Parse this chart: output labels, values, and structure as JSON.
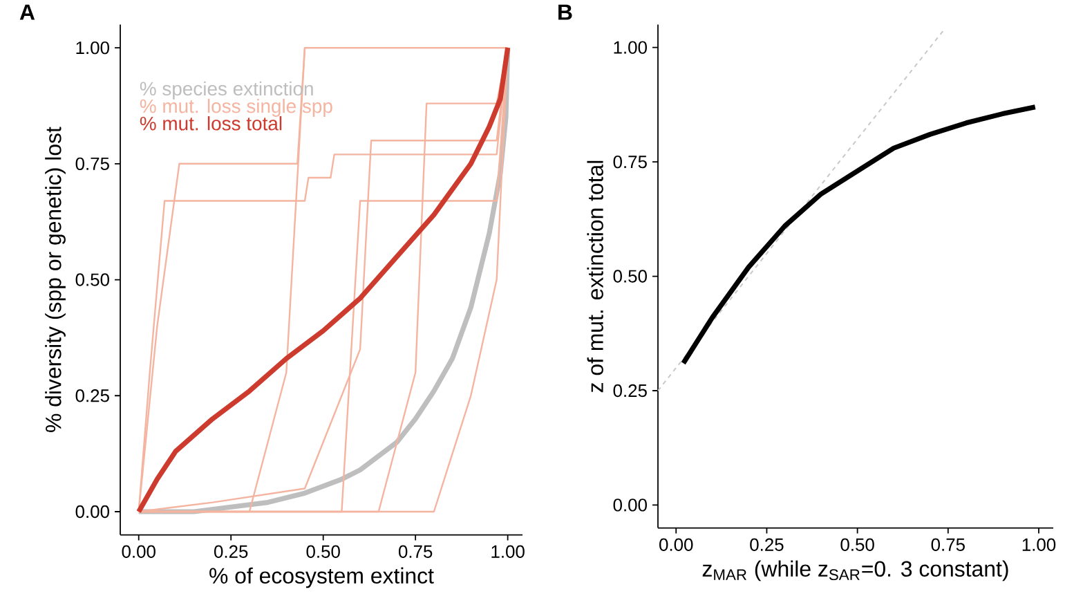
{
  "chart_data": [
    {
      "type": "line",
      "title": "A",
      "xlabel": "% of ecosystem extinct",
      "ylabel": "% diversity (spp or genetic) lost",
      "legend": "top left",
      "xlim": [
        -0.05,
        1.04
      ],
      "ylim": [
        -0.05,
        1.05
      ],
      "xticks": [
        {
          "value": 0,
          "label": "0.00"
        },
        {
          "value": 0.25,
          "label": "0.25"
        },
        {
          "value": 0.5,
          "label": "0.50"
        },
        {
          "value": 0.75,
          "label": "0.75"
        },
        {
          "value": 1,
          "label": "1.00"
        }
      ],
      "yticks": [
        {
          "value": 0,
          "label": "0.00"
        },
        {
          "value": 0.25,
          "label": "0.25"
        },
        {
          "value": 0.5,
          "label": "0.50"
        },
        {
          "value": 0.75,
          "label": "0.75"
        },
        {
          "value": 1,
          "label": "1.00"
        }
      ],
      "series": [
        {
          "name": "% species extinction",
          "color": "#bebebe",
          "x": [
            0,
            0.15,
            0.25,
            0.35,
            0.45,
            0.55,
            0.6,
            0.7,
            0.75,
            0.8,
            0.85,
            0.9,
            0.95,
            0.98,
            0.995,
            1.0
          ],
          "values": [
            0,
            0,
            0.01,
            0.02,
            0.04,
            0.07,
            0.09,
            0.15,
            0.2,
            0.26,
            0.33,
            0.44,
            0.6,
            0.73,
            0.85,
            1.0
          ]
        },
        {
          "name": "% mut. loss single spp",
          "color": "#f4b4a0",
          "x": [
            0,
            0.03,
            0.07,
            0.45,
            0.46,
            0.52,
            0.53,
            0.97,
            1.0
          ],
          "values": [
            0,
            0.3,
            0.67,
            0.67,
            0.72,
            0.72,
            0.77,
            0.77,
            1.0
          ]
        },
        {
          "color": "#f4b4a0",
          "x": [
            0,
            0.05,
            0.11,
            0.43,
            0.45,
            1.0
          ],
          "values": [
            0,
            0.4,
            0.75,
            0.75,
            1.0,
            1.0
          ]
        },
        {
          "color": "#f4b4a0",
          "x": [
            0,
            0.3,
            0.4,
            0.45,
            1.0
          ],
          "values": [
            0,
            0,
            0.3,
            1.0,
            1.0
          ]
        },
        {
          "color": "#f4b4a0",
          "x": [
            0,
            0.55,
            0.6,
            0.97,
            1.0
          ],
          "values": [
            0,
            0,
            0.67,
            0.67,
            1.0
          ]
        },
        {
          "color": "#f4b4a0",
          "x": [
            0,
            0.65,
            0.75,
            0.78,
            0.97,
            1.0
          ],
          "values": [
            0,
            0,
            0.3,
            0.88,
            0.88,
            1.0
          ]
        },
        {
          "color": "#f4b4a0",
          "x": [
            0,
            0.8,
            0.9,
            0.97,
            1.0
          ],
          "values": [
            0,
            0,
            0.25,
            0.5,
            1.0
          ]
        },
        {
          "color": "#f4b4a0",
          "x": [
            0,
            0.2,
            0.45,
            0.6,
            0.63,
            0.97,
            1.0
          ],
          "values": [
            0,
            0.02,
            0.05,
            0.35,
            0.8,
            0.8,
            1.0
          ]
        },
        {
          "name": "% mut. loss total",
          "color": "#cc3b2e",
          "x": [
            0,
            0.05,
            0.1,
            0.2,
            0.3,
            0.4,
            0.5,
            0.6,
            0.7,
            0.8,
            0.9,
            0.95,
            0.98,
            1.0
          ],
          "values": [
            0,
            0.07,
            0.13,
            0.2,
            0.26,
            0.33,
            0.39,
            0.46,
            0.55,
            0.64,
            0.75,
            0.83,
            0.89,
            1.0
          ]
        }
      ]
    },
    {
      "type": "line",
      "title": "B",
      "xlabel": "z$_{MAR}$ (while z$_{SAR}$=0. 3 constant)",
      "ylabel": "z of mut. extinction total",
      "xlim": [
        -0.05,
        1.04
      ],
      "ylim": [
        -0.05,
        1.05
      ],
      "xticks": [
        {
          "value": 0,
          "label": "0.00"
        },
        {
          "value": 0.25,
          "label": "0.25"
        },
        {
          "value": 0.5,
          "label": "0.50"
        },
        {
          "value": 0.75,
          "label": "0.75"
        },
        {
          "value": 1,
          "label": "1.00"
        }
      ],
      "yticks": [
        {
          "value": 0,
          "label": "0.00"
        },
        {
          "value": 0.25,
          "label": "0.25"
        },
        {
          "value": 0.5,
          "label": "0.50"
        },
        {
          "value": 0.75,
          "label": "0.75"
        },
        {
          "value": 1,
          "label": "1.00"
        }
      ],
      "series": [
        {
          "color": "#c8c8c8",
          "line_style": "dashed",
          "x": [
            -0.05,
            0.74
          ],
          "values": [
            0.25,
            1.04
          ]
        },
        {
          "color": "#000000",
          "x": [
            0.02,
            0.1,
            0.2,
            0.3,
            0.4,
            0.5,
            0.6,
            0.7,
            0.8,
            0.9,
            0.99
          ],
          "values": [
            0.31,
            0.41,
            0.52,
            0.61,
            0.68,
            0.73,
            0.78,
            0.81,
            0.835,
            0.855,
            0.87
          ]
        }
      ]
    }
  ]
}
